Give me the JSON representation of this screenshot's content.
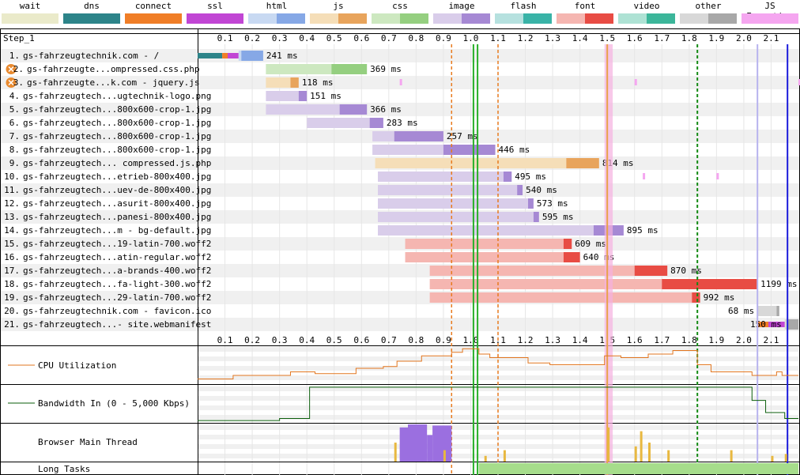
{
  "legend": [
    {
      "label": "wait",
      "colors": [
        "#eaeaca",
        "#eaeaca"
      ]
    },
    {
      "label": "dns",
      "colors": [
        "#2d8489",
        "#2d8489"
      ]
    },
    {
      "label": "connect",
      "colors": [
        "#f07e27",
        "#f07e27"
      ]
    },
    {
      "label": "ssl",
      "colors": [
        "#c146d4",
        "#c146d4"
      ]
    },
    {
      "label": "html",
      "colors": [
        "#c8d9f2",
        "#86a8e6"
      ]
    },
    {
      "label": "js",
      "colors": [
        "#f5deb8",
        "#e8a45c"
      ]
    },
    {
      "label": "css",
      "colors": [
        "#cde8c0",
        "#95cf80"
      ]
    },
    {
      "label": "image",
      "colors": [
        "#d9cdea",
        "#a689d4"
      ]
    },
    {
      "label": "flash",
      "colors": [
        "#b6e1df",
        "#39b3a7"
      ]
    },
    {
      "label": "font",
      "colors": [
        "#f5b6b1",
        "#e84c44"
      ]
    },
    {
      "label": "video",
      "colors": [
        "#aee2d4",
        "#3cb69a"
      ]
    },
    {
      "label": "other",
      "colors": [
        "#d8d8d8",
        "#a8a8a8"
      ]
    },
    {
      "label": "JS Execution",
      "colors": [
        "#f5a6f0",
        "#f5a6f0"
      ]
    }
  ],
  "step_label": "Step_1",
  "axis": {
    "ticks": [
      "0.1",
      "0.2",
      "0.3",
      "0.4",
      "0.5",
      "0.6",
      "0.7",
      "0.8",
      "0.9",
      "1.0",
      "1.1",
      "1.2",
      "1.3",
      "1.4",
      "1.5",
      "1.6",
      "1.7",
      "1.8",
      "1.9",
      "2.0",
      "2.1"
    ],
    "max_seconds": 2.2
  },
  "rows": [
    {
      "num": "1.",
      "label": "gs-fahrzeugtechnik.com - /",
      "warn": false,
      "time": "241 ms",
      "type": "html",
      "start": 0.0,
      "dns": [
        0.0,
        0.09
      ],
      "connect": [
        0.09,
        0.11
      ],
      "ssl": [
        0.11,
        0.15
      ],
      "wait": [
        0.15,
        0.16
      ],
      "recv": [
        0.16,
        0.24
      ]
    },
    {
      "num": "2.",
      "label": "gs-fahrzeugte...ompressed.css.php",
      "warn": true,
      "time": "369 ms",
      "type": "css",
      "wait": [
        0.25,
        0.49
      ],
      "recv": [
        0.49,
        0.62
      ]
    },
    {
      "num": "3.",
      "label": "gs-fahrzeugte...k.com - jquery.js",
      "warn": true,
      "time": "118 ms",
      "type": "js",
      "wait": [
        0.25,
        0.34
      ],
      "recv": [
        0.34,
        0.37
      ]
    },
    {
      "num": "4.",
      "label": "gs-fahrzeugtech...ugtechnik-logo.png",
      "warn": false,
      "time": "151 ms",
      "type": "image",
      "wait": [
        0.25,
        0.37
      ],
      "recv": [
        0.37,
        0.4
      ]
    },
    {
      "num": "5.",
      "label": "gs-fahrzeugtech...800x600-crop-1.jpg",
      "warn": false,
      "time": "366 ms",
      "type": "image",
      "wait": [
        0.25,
        0.52
      ],
      "recv": [
        0.52,
        0.62
      ]
    },
    {
      "num": "6.",
      "label": "gs-fahrzeugtech...800x600-crop-1.jpg",
      "warn": false,
      "time": "283 ms",
      "type": "image",
      "wait": [
        0.4,
        0.63
      ],
      "recv": [
        0.63,
        0.68
      ]
    },
    {
      "num": "7.",
      "label": "gs-fahrzeugtech...800x600-crop-1.jpg",
      "warn": false,
      "time": "257 ms",
      "type": "image",
      "wait": [
        0.64,
        0.72
      ],
      "recv": [
        0.72,
        0.9
      ]
    },
    {
      "num": "8.",
      "label": "gs-fahrzeugtech...800x600-crop-1.jpg",
      "warn": false,
      "time": "446 ms",
      "type": "image",
      "wait": [
        0.64,
        0.9
      ],
      "recv": [
        0.9,
        1.09
      ]
    },
    {
      "num": "9.",
      "label": "gs-fahrzeugtech... compressed.js.php",
      "warn": false,
      "time": "814 ms",
      "type": "js",
      "wait": [
        0.65,
        1.35
      ],
      "recv": [
        1.35,
        1.47
      ]
    },
    {
      "num": "10.",
      "label": "gs-fahrzeugtech...etrieb-800x400.jpg",
      "warn": false,
      "time": "495 ms",
      "type": "image",
      "wait": [
        0.66,
        1.12
      ],
      "recv": [
        1.12,
        1.15
      ]
    },
    {
      "num": "11.",
      "label": "gs-fahrzeugtech...uev-de-800x400.jpg",
      "warn": false,
      "time": "540 ms",
      "type": "image",
      "wait": [
        0.66,
        1.17
      ],
      "recv": [
        1.17,
        1.19
      ]
    },
    {
      "num": "12.",
      "label": "gs-fahrzeugtech...asurit-800x400.jpg",
      "warn": false,
      "time": "573 ms",
      "type": "image",
      "wait": [
        0.66,
        1.21
      ],
      "recv": [
        1.21,
        1.23
      ]
    },
    {
      "num": "13.",
      "label": "gs-fahrzeugtech...panesi-800x400.jpg",
      "warn": false,
      "time": "595 ms",
      "type": "image",
      "wait": [
        0.66,
        1.23
      ],
      "recv": [
        1.23,
        1.25
      ]
    },
    {
      "num": "14.",
      "label": "gs-fahrzeugtech...m - bg-default.jpg",
      "warn": false,
      "time": "895 ms",
      "type": "image",
      "wait": [
        0.66,
        1.45
      ],
      "recv": [
        1.45,
        1.56
      ]
    },
    {
      "num": "15.",
      "label": "gs-fahrzeugtech...19-latin-700.woff2",
      "warn": false,
      "time": "609 ms",
      "type": "font",
      "wait": [
        0.76,
        1.34
      ],
      "recv": [
        1.34,
        1.37
      ]
    },
    {
      "num": "16.",
      "label": "gs-fahrzeugtech...atin-regular.woff2",
      "warn": false,
      "time": "640 ms",
      "type": "font",
      "wait": [
        0.76,
        1.34
      ],
      "recv": [
        1.34,
        1.4
      ]
    },
    {
      "num": "17.",
      "label": "gs-fahrzeugtech...a-brands-400.woff2",
      "warn": false,
      "time": "870 ms",
      "type": "font",
      "wait": [
        0.85,
        1.6
      ],
      "recv": [
        1.6,
        1.72
      ]
    },
    {
      "num": "18.",
      "label": "gs-fahrzeugtech...fa-light-300.woff2",
      "warn": false,
      "time": "1199 ms",
      "type": "font",
      "wait": [
        0.85,
        1.7
      ],
      "recv": [
        1.7,
        2.05
      ]
    },
    {
      "num": "19.",
      "label": "gs-fahrzeugtech...29-latin-700.woff2",
      "warn": false,
      "time": "992 ms",
      "type": "font",
      "wait": [
        0.85,
        1.81
      ],
      "recv": [
        1.81,
        1.84
      ]
    },
    {
      "num": "20.",
      "label": "gs-fahrzeugtechnik.com - favicon.ico",
      "warn": false,
      "time": "68 ms",
      "type": "other",
      "wait": [
        2.05,
        2.12
      ],
      "recv": [
        2.12,
        2.13
      ]
    },
    {
      "num": "21.",
      "label": "gs-fahrzeugtech...- site.webmanifest",
      "warn": false,
      "time": "150 ms",
      "type": "other",
      "start": 2.05,
      "connect": [
        2.05,
        2.09
      ],
      "ssl": [
        2.09,
        2.15
      ],
      "wait": [
        2.15,
        2.16
      ],
      "recv": [
        2.16,
        2.2
      ]
    }
  ],
  "markers": {
    "orange_dashed": [
      0.93,
      1.1
    ],
    "green_solid": [
      1.01,
      1.025
    ],
    "green_dashed": [
      1.83
    ],
    "pink_band": [
      1.49,
      1.52
    ],
    "lavender": [
      2.05
    ],
    "blue_solid": [
      2.16
    ]
  },
  "panels": {
    "cpu_label": "CPU Utilization",
    "bandwidth_label": "Bandwidth In (0 - 5,000 Kbps)",
    "main_thread_label": "Browser Main Thread",
    "long_tasks_label": "Long Tasks"
  },
  "colors": {
    "cpu": "#e2761f",
    "bandwidth": "#0b5e0b",
    "grid": "#e6e6e6",
    "long_task": "#a6dd8b"
  }
}
